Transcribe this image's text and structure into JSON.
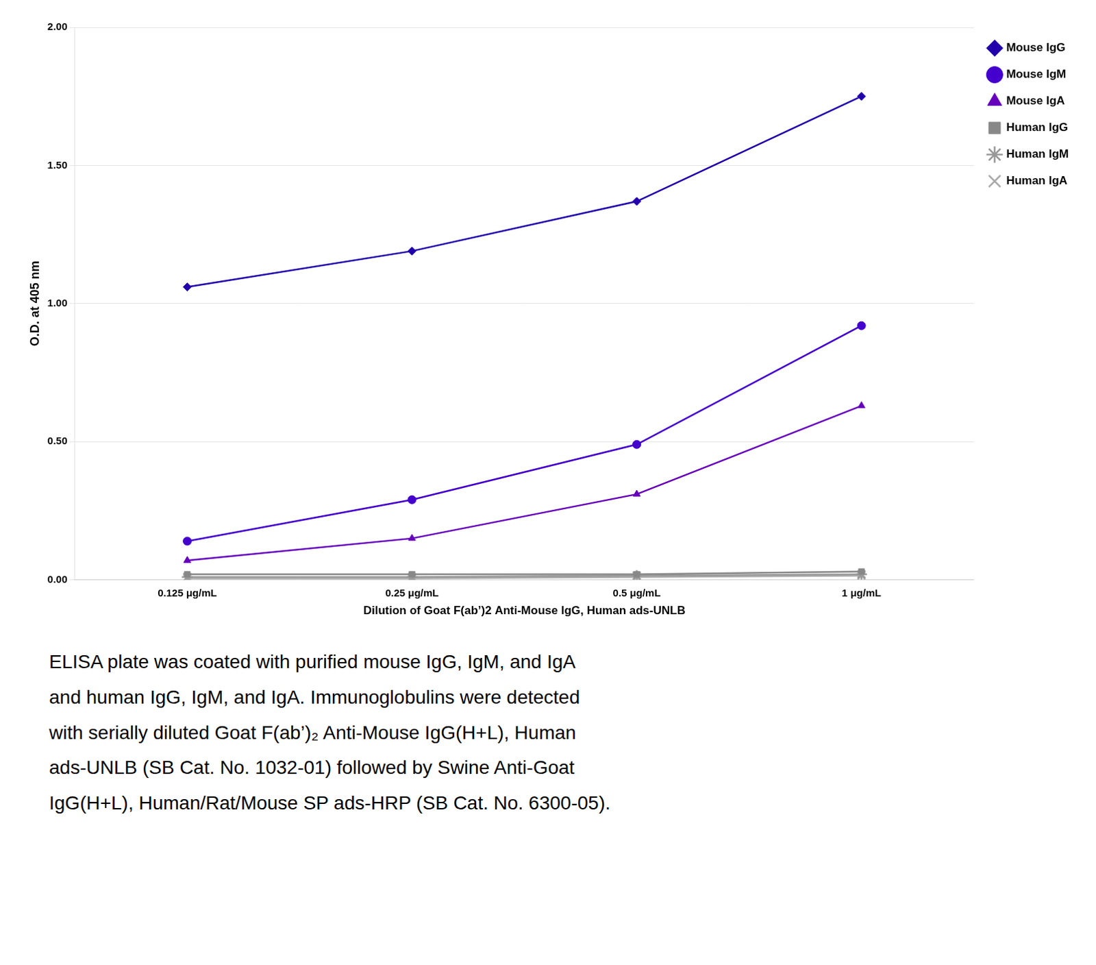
{
  "chart_data": {
    "type": "line",
    "categories": [
      "0.125 μg/mL",
      "0.25 μg/mL",
      "0.5 μg/mL",
      "1 μg/mL"
    ],
    "series": [
      {
        "name": "Mouse IgG",
        "color": "#2200aa",
        "marker": "diamond",
        "values": [
          1.06,
          1.19,
          1.37,
          1.75
        ]
      },
      {
        "name": "Mouse IgM",
        "color": "#4400cc",
        "marker": "circle",
        "values": [
          0.14,
          0.29,
          0.49,
          0.92
        ]
      },
      {
        "name": "Mouse IgA",
        "color": "#6600bb",
        "marker": "triangle",
        "values": [
          0.07,
          0.15,
          0.31,
          0.63
        ]
      },
      {
        "name": "Human IgG",
        "color": "#888888",
        "marker": "square",
        "values": [
          0.02,
          0.02,
          0.02,
          0.03
        ]
      },
      {
        "name": "Human IgM",
        "color": "#999999",
        "marker": "star",
        "values": [
          0.01,
          0.01,
          0.015,
          0.02
        ]
      },
      {
        "name": "Human IgA",
        "color": "#aaaaaa",
        "marker": "x",
        "values": [
          0.005,
          0.005,
          0.01,
          0.015
        ]
      }
    ],
    "x_label": "Dilution of Goat F(ab’)2 Anti-Mouse IgG, Human ads-UNLB",
    "y_label": "O.D. at 405 nm",
    "ylim": [
      0.0,
      2.0
    ],
    "yticks": [
      {
        "value": 0.0,
        "label": "0.00"
      },
      {
        "value": 0.5,
        "label": "0.50"
      },
      {
        "value": 1.0,
        "label": "1.00"
      },
      {
        "value": 1.5,
        "label": "1.50"
      },
      {
        "value": 2.0,
        "label": "2.00"
      }
    ],
    "grid": "y",
    "legend": "right",
    "annotations": [
      "ELISA plate was coated with purified mouse IgG, IgM, and IgA",
      "and human IgG, IgM, and IgA. Immunoglobulins were detected",
      "with serially diluted Goat F(ab’)₂ Anti-Mouse IgG(H+L), Human",
      "ads-UNLB (SB Cat. No. 1032-01) followed by Swine Anti-Goat",
      "IgG(H+L), Human/Rat/Mouse SP ads-HRP (SB Cat. No. 6300-05)."
    ]
  }
}
